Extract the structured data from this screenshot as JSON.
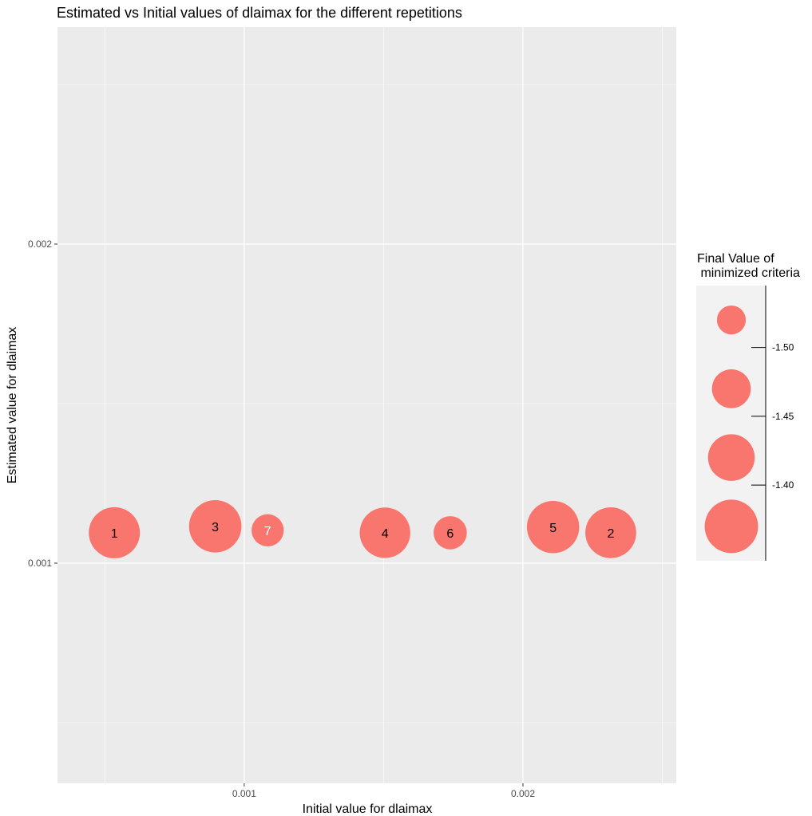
{
  "chart_data": {
    "type": "scatter",
    "title": "Estimated vs Initial values of dlaimax for the different repetitions",
    "xlabel": "Initial value for dlaimax",
    "ylabel": "Estimated value for dlaimax",
    "xlim": [
      0.00033,
      0.00255
    ],
    "ylim": [
      0.00031,
      0.00268
    ],
    "x_ticks": [
      0.001,
      0.002
    ],
    "x_tick_labels": [
      "0.001",
      "0.002"
    ],
    "y_ticks": [
      0.001,
      0.002
    ],
    "y_tick_labels": [
      "0.001",
      "0.002"
    ],
    "grid": true,
    "point_color": "#F8766D",
    "points": [
      {
        "label": "1",
        "x": 0.000534,
        "y": 0.0010953,
        "size": -1.388,
        "label_color": "#000000"
      },
      {
        "label": "2",
        "x": 0.002315,
        "y": 0.0010953,
        "size": -1.39,
        "label_color": "#000000"
      },
      {
        "label": "3",
        "x": 0.000896,
        "y": 0.0011156,
        "size": -1.378,
        "label_color": "#000000"
      },
      {
        "label": "4",
        "x": 0.001505,
        "y": 0.0010953,
        "size": -1.392,
        "label_color": "#000000"
      },
      {
        "label": "5",
        "x": 0.002108,
        "y": 0.0011131,
        "size": -1.379,
        "label_color": "#000000"
      },
      {
        "label": "6",
        "x": 0.001739,
        "y": 0.0010953,
        "size": -1.5,
        "label_color": "#000000"
      },
      {
        "label": "7",
        "x": 0.001084,
        "y": 0.0011029,
        "size": -1.505,
        "label_color": "#ffffff"
      }
    ],
    "legend": {
      "title": [
        "Final Value of",
        " minimized criteria"
      ],
      "position": "right",
      "size_values": [
        -1.52,
        -1.47,
        -1.42,
        -1.37
      ],
      "ticks": [
        -1.5,
        -1.45,
        -1.4
      ],
      "tick_labels": [
        "-1.50",
        "-1.45",
        "-1.40"
      ],
      "range": [
        -1.55,
        -1.35
      ]
    }
  }
}
